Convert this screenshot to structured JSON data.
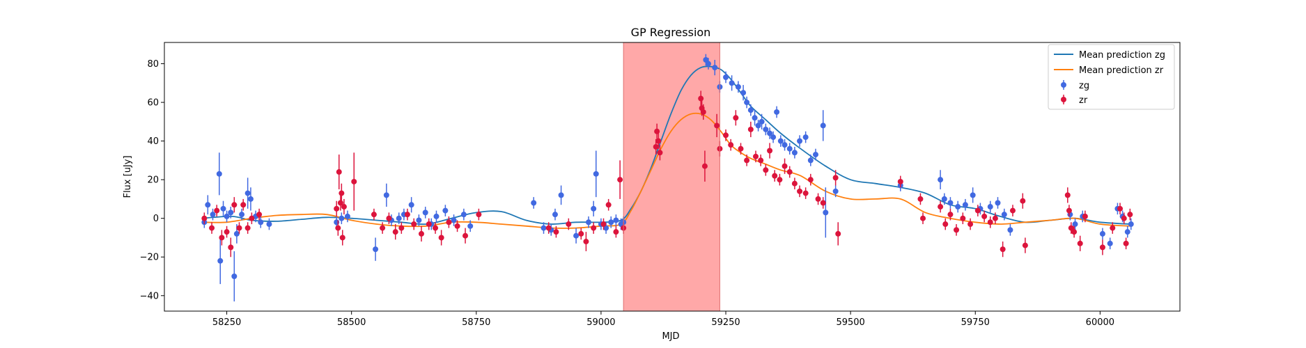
{
  "chart_data": {
    "type": "scatter",
    "title": "GP Regression",
    "xlabel": "MJD",
    "ylabel": "Flux [uJy]",
    "xlim": [
      58125,
      60160
    ],
    "ylim": [
      -48,
      91
    ],
    "xticks": [
      58250,
      58500,
      58750,
      59000,
      59250,
      59500,
      59750,
      60000
    ],
    "yticks": [
      -40,
      -20,
      0,
      20,
      40,
      60,
      80
    ],
    "grid": false,
    "legend_position": "top-right",
    "shaded_region": {
      "x_start": 59045,
      "x_end": 59238,
      "color": "#ff9999"
    },
    "colors": {
      "zg_points": "#4169e1",
      "zr_points": "#dc143c",
      "zg_line": "#1f77b4",
      "zr_line": "#ff7f0e"
    },
    "lines": [
      {
        "name": "Mean prediction zg",
        "x": [
          58200,
          58260,
          58300,
          58350,
          58400,
          58450,
          58500,
          58550,
          58600,
          58650,
          58700,
          58750,
          58800,
          58850,
          58900,
          58950,
          59000,
          59040,
          59060,
          59080,
          59100,
          59120,
          59140,
          59160,
          59180,
          59200,
          59220,
          59240,
          59260,
          59280,
          59300,
          59330,
          59360,
          59400,
          59450,
          59500,
          59550,
          59600,
          59650,
          59700,
          59750,
          59800,
          59850,
          59900,
          59950,
          60000,
          60060
        ],
        "y": [
          0,
          1,
          -1,
          -1.5,
          -0.5,
          0.5,
          0,
          -1,
          -2,
          -3,
          0,
          3,
          3.5,
          -1,
          -3,
          -2,
          -2,
          -1,
          5,
          14,
          26,
          40,
          54,
          66,
          74,
          78,
          78.5,
          77,
          72,
          65,
          58,
          51,
          44,
          36,
          27,
          20,
          18,
          16,
          13,
          7,
          5,
          1,
          -2,
          -1,
          0,
          -2,
          -3
        ]
      },
      {
        "name": "Mean prediction zr",
        "x": [
          58200,
          58250,
          58300,
          58350,
          58400,
          58450,
          58500,
          58550,
          58600,
          58650,
          58700,
          58750,
          58800,
          58850,
          58900,
          58950,
          59000,
          59040,
          59060,
          59080,
          59100,
          59120,
          59140,
          59160,
          59180,
          59200,
          59220,
          59240,
          59260,
          59280,
          59300,
          59330,
          59360,
          59400,
          59450,
          59500,
          59550,
          59600,
          59650,
          59700,
          59750,
          59800,
          59850,
          59900,
          59950,
          60000,
          60060
        ],
        "y": [
          -2,
          -2,
          0,
          1.5,
          2,
          2,
          -1,
          -3,
          -4,
          -4,
          -2,
          -2,
          -3,
          -4,
          -5,
          -5,
          -4,
          -3,
          4,
          14,
          25,
          36,
          45,
          51,
          54,
          54,
          51,
          45,
          38,
          34,
          31,
          28,
          25,
          22,
          14,
          10,
          10,
          10,
          3,
          0,
          -2,
          -3,
          -2,
          -1,
          0,
          -3,
          -4
        ]
      }
    ],
    "series": [
      {
        "name": "zg",
        "points": [
          [
            58205,
            -2,
            3
          ],
          [
            58212,
            7,
            5
          ],
          [
            58222,
            2,
            3
          ],
          [
            58235,
            23,
            11
          ],
          [
            58237,
            -22,
            12
          ],
          [
            58243,
            5,
            4
          ],
          [
            58250,
            1,
            3
          ],
          [
            58258,
            3,
            3
          ],
          [
            58265,
            -30,
            13
          ],
          [
            58270,
            -8,
            5
          ],
          [
            58280,
            2,
            3
          ],
          [
            58292,
            13,
            8
          ],
          [
            58298,
            10,
            6
          ],
          [
            58308,
            1,
            3
          ],
          [
            58318,
            -2,
            3
          ],
          [
            58335,
            -3,
            3
          ],
          [
            58470,
            -2,
            3
          ],
          [
            58480,
            0,
            3
          ],
          [
            58492,
            1,
            3
          ],
          [
            58548,
            -16,
            6
          ],
          [
            58570,
            12,
            6
          ],
          [
            58580,
            -1,
            3
          ],
          [
            58595,
            0,
            3
          ],
          [
            58605,
            2,
            3
          ],
          [
            58620,
            7,
            4
          ],
          [
            58635,
            -1,
            3
          ],
          [
            58648,
            3,
            3
          ],
          [
            58660,
            -3,
            3
          ],
          [
            58670,
            1,
            3
          ],
          [
            58688,
            4,
            3
          ],
          [
            58705,
            -1,
            3
          ],
          [
            58725,
            2,
            3
          ],
          [
            58738,
            -4,
            3
          ],
          [
            58865,
            8,
            3
          ],
          [
            58885,
            -5,
            3
          ],
          [
            58900,
            -6,
            3
          ],
          [
            58908,
            2,
            3
          ],
          [
            58920,
            12,
            5
          ],
          [
            58950,
            -9,
            4
          ],
          [
            58975,
            -2,
            3
          ],
          [
            58985,
            5,
            4
          ],
          [
            58990,
            23,
            12
          ],
          [
            59000,
            -3,
            3
          ],
          [
            59010,
            -5,
            3
          ],
          [
            59020,
            -2,
            3
          ],
          [
            59030,
            -1,
            3
          ],
          [
            59040,
            -3,
            3
          ],
          [
            59045,
            -2,
            3
          ],
          [
            59210,
            82,
            3
          ],
          [
            59215,
            80,
            3
          ],
          [
            59228,
            78,
            4
          ],
          [
            59238,
            68,
            3
          ],
          [
            59250,
            73,
            3
          ],
          [
            59262,
            70,
            4
          ],
          [
            59275,
            68,
            3
          ],
          [
            59285,
            65,
            4
          ],
          [
            59292,
            60,
            3
          ],
          [
            59300,
            56,
            3
          ],
          [
            59308,
            52,
            4
          ],
          [
            59315,
            48,
            3
          ],
          [
            59322,
            50,
            4
          ],
          [
            59330,
            46,
            3
          ],
          [
            59338,
            44,
            3
          ],
          [
            59345,
            42,
            3
          ],
          [
            59352,
            55,
            3
          ],
          [
            59360,
            40,
            3
          ],
          [
            59368,
            38,
            3
          ],
          [
            59378,
            36,
            3
          ],
          [
            59388,
            34,
            3
          ],
          [
            59398,
            40,
            3
          ],
          [
            59410,
            42,
            3
          ],
          [
            59420,
            30,
            3
          ],
          [
            59430,
            33,
            3
          ],
          [
            59445,
            48,
            8
          ],
          [
            59450,
            3,
            13
          ],
          [
            59470,
            14,
            3
          ],
          [
            59600,
            17,
            3
          ],
          [
            59680,
            20,
            5
          ],
          [
            59688,
            10,
            3
          ],
          [
            59700,
            8,
            3
          ],
          [
            59715,
            6,
            3
          ],
          [
            59730,
            7,
            3
          ],
          [
            59745,
            12,
            4
          ],
          [
            59760,
            5,
            3
          ],
          [
            59780,
            6,
            3
          ],
          [
            59795,
            8,
            3
          ],
          [
            59808,
            2,
            3
          ],
          [
            59820,
            -6,
            3
          ],
          [
            59940,
            2,
            3
          ],
          [
            59950,
            -3,
            3
          ],
          [
            59965,
            1,
            3
          ],
          [
            60005,
            -8,
            3
          ],
          [
            60020,
            -13,
            3
          ],
          [
            60035,
            5,
            3
          ],
          [
            60045,
            1,
            3
          ],
          [
            60055,
            -7,
            3
          ],
          [
            60062,
            -3,
            3
          ]
        ]
      },
      {
        "name": "zr",
        "points": [
          [
            58205,
            0,
            3
          ],
          [
            58220,
            -5,
            3
          ],
          [
            58230,
            4,
            3
          ],
          [
            58240,
            -10,
            4
          ],
          [
            58250,
            -7,
            3
          ],
          [
            58258,
            -15,
            5
          ],
          [
            58265,
            7,
            4
          ],
          [
            58275,
            -5,
            3
          ],
          [
            58283,
            7,
            3
          ],
          [
            58292,
            -5,
            3
          ],
          [
            58300,
            0,
            3
          ],
          [
            58315,
            2,
            3
          ],
          [
            58470,
            5,
            4
          ],
          [
            58473,
            -5,
            4
          ],
          [
            58475,
            24,
            9
          ],
          [
            58478,
            8,
            4
          ],
          [
            58480,
            13,
            5
          ],
          [
            58482,
            -10,
            4
          ],
          [
            58485,
            6,
            4
          ],
          [
            58505,
            19,
            15
          ],
          [
            58545,
            2,
            3
          ],
          [
            58562,
            -5,
            3
          ],
          [
            58575,
            0,
            3
          ],
          [
            58588,
            -7,
            4
          ],
          [
            58600,
            -5,
            3
          ],
          [
            58612,
            2,
            3
          ],
          [
            58625,
            -3,
            3
          ],
          [
            58640,
            -8,
            4
          ],
          [
            58655,
            -3,
            3
          ],
          [
            58668,
            -5,
            3
          ],
          [
            58680,
            -10,
            4
          ],
          [
            58695,
            -2,
            3
          ],
          [
            58712,
            -4,
            3
          ],
          [
            58728,
            -9,
            4
          ],
          [
            58755,
            2,
            3
          ],
          [
            58895,
            -5,
            3
          ],
          [
            58910,
            -7,
            3
          ],
          [
            58935,
            -3,
            3
          ],
          [
            58960,
            -8,
            3
          ],
          [
            58970,
            -12,
            5
          ],
          [
            58985,
            -5,
            3
          ],
          [
            59005,
            -3,
            3
          ],
          [
            59015,
            7,
            3
          ],
          [
            59030,
            -7,
            3
          ],
          [
            59038,
            20,
            10
          ],
          [
            59045,
            -5,
            3
          ],
          [
            59110,
            37,
            4
          ],
          [
            59112,
            45,
            4
          ],
          [
            59115,
            40,
            4
          ],
          [
            59118,
            34,
            4
          ],
          [
            59200,
            62,
            4
          ],
          [
            59202,
            57,
            4
          ],
          [
            59205,
            55,
            4
          ],
          [
            59208,
            27,
            8
          ],
          [
            59232,
            48,
            6
          ],
          [
            59238,
            36,
            4
          ],
          [
            59250,
            43,
            3
          ],
          [
            59260,
            38,
            3
          ],
          [
            59270,
            52,
            4
          ],
          [
            59280,
            36,
            3
          ],
          [
            59292,
            30,
            3
          ],
          [
            59300,
            46,
            4
          ],
          [
            59310,
            32,
            3
          ],
          [
            59320,
            30,
            3
          ],
          [
            59330,
            25,
            3
          ],
          [
            59338,
            35,
            4
          ],
          [
            59348,
            22,
            3
          ],
          [
            59358,
            20,
            3
          ],
          [
            59368,
            27,
            4
          ],
          [
            59378,
            24,
            3
          ],
          [
            59388,
            18,
            3
          ],
          [
            59398,
            14,
            3
          ],
          [
            59410,
            13,
            3
          ],
          [
            59420,
            20,
            3
          ],
          [
            59435,
            10,
            3
          ],
          [
            59445,
            8,
            3
          ],
          [
            59470,
            21,
            4
          ],
          [
            59475,
            -8,
            6
          ],
          [
            59600,
            19,
            3
          ],
          [
            59640,
            10,
            3
          ],
          [
            59645,
            0,
            3
          ],
          [
            59680,
            6,
            3
          ],
          [
            59690,
            -3,
            3
          ],
          [
            59700,
            2,
            3
          ],
          [
            59712,
            -6,
            3
          ],
          [
            59725,
            0,
            3
          ],
          [
            59740,
            -3,
            3
          ],
          [
            59755,
            4,
            3
          ],
          [
            59768,
            1,
            3
          ],
          [
            59780,
            -2,
            3
          ],
          [
            59790,
            0,
            3
          ],
          [
            59805,
            -16,
            4
          ],
          [
            59825,
            4,
            3
          ],
          [
            59845,
            9,
            4
          ],
          [
            59850,
            -14,
            4
          ],
          [
            59935,
            12,
            4
          ],
          [
            59938,
            4,
            3
          ],
          [
            59942,
            -5,
            3
          ],
          [
            59948,
            -7,
            3
          ],
          [
            59960,
            -13,
            4
          ],
          [
            59970,
            1,
            3
          ],
          [
            60005,
            -15,
            4
          ],
          [
            60025,
            -5,
            3
          ],
          [
            60040,
            5,
            3
          ],
          [
            60048,
            0,
            3
          ],
          [
            60052,
            -13,
            3
          ],
          [
            60060,
            2,
            3
          ]
        ]
      }
    ]
  }
}
